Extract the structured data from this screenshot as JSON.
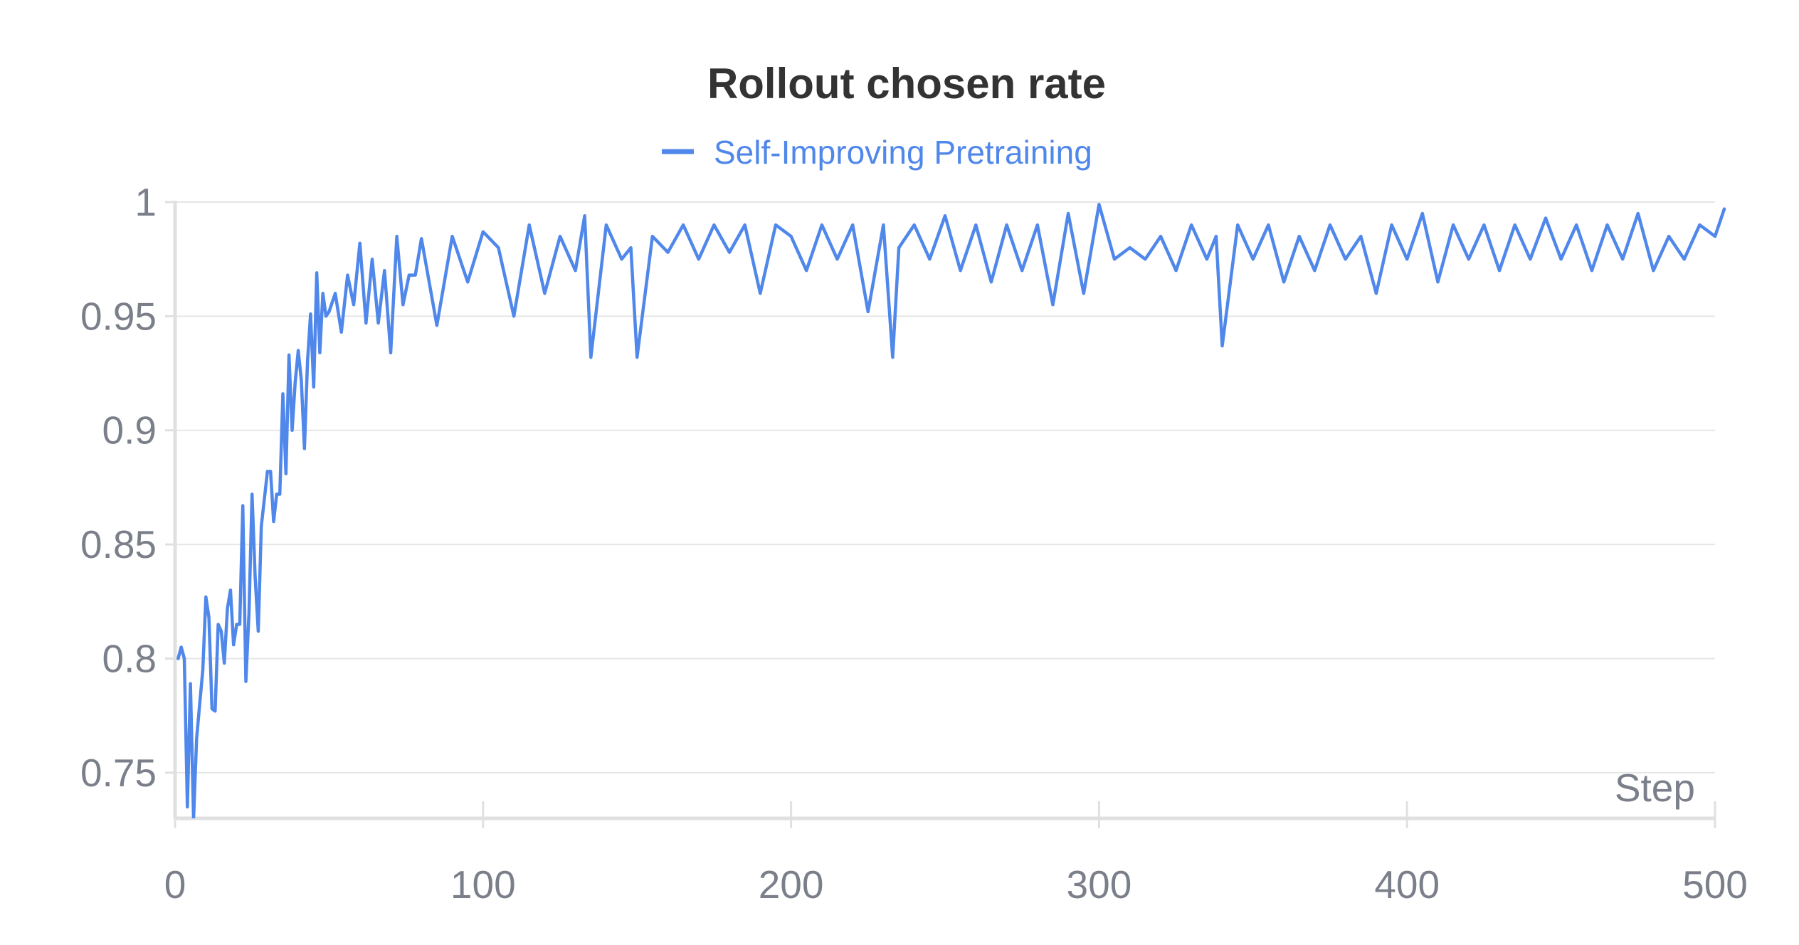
{
  "chart_data": {
    "type": "line",
    "title": "Rollout chosen rate",
    "xlabel": "Step",
    "ylabel": "",
    "xlim": [
      0,
      500
    ],
    "ylim": [
      0.73,
      1.0
    ],
    "x_ticks": [
      "0",
      "100",
      "200",
      "300",
      "400",
      "500"
    ],
    "x_tick_values": [
      0,
      100,
      200,
      300,
      400,
      500
    ],
    "y_ticks": [
      "0.75",
      "0.8",
      "0.85",
      "0.9",
      "0.95",
      "1"
    ],
    "y_tick_values": [
      0.75,
      0.8,
      0.85,
      0.9,
      0.95,
      1.0
    ],
    "grid": true,
    "legend": {
      "position": "top-center"
    },
    "series": [
      {
        "name": "Self-Improving Pretraining",
        "color": "#5087ea",
        "x": [
          1,
          2,
          3,
          4,
          5,
          6,
          7,
          8,
          9,
          10,
          11,
          12,
          13,
          14,
          15,
          16,
          17,
          18,
          19,
          20,
          21,
          22,
          23,
          24,
          25,
          26,
          27,
          28,
          29,
          30,
          31,
          32,
          33,
          34,
          35,
          36,
          37,
          38,
          39,
          40,
          41,
          42,
          43,
          44,
          45,
          46,
          47,
          48,
          49,
          50,
          52,
          54,
          56,
          58,
          60,
          62,
          64,
          66,
          68,
          70,
          72,
          74,
          76,
          78,
          80,
          85,
          90,
          95,
          100,
          105,
          110,
          115,
          120,
          125,
          130,
          133,
          135,
          140,
          145,
          148,
          150,
          155,
          160,
          165,
          170,
          175,
          180,
          185,
          190,
          195,
          200,
          205,
          210,
          215,
          220,
          225,
          230,
          233,
          235,
          240,
          245,
          250,
          255,
          260,
          265,
          270,
          275,
          280,
          285,
          290,
          295,
          300,
          305,
          310,
          315,
          320,
          325,
          330,
          335,
          338,
          340,
          345,
          350,
          355,
          360,
          365,
          370,
          375,
          380,
          385,
          390,
          395,
          400,
          405,
          410,
          415,
          420,
          425,
          430,
          435,
          440,
          445,
          450,
          455,
          460,
          465,
          470,
          475,
          480,
          485,
          490,
          495,
          500,
          503
        ],
        "values": [
          0.8,
          0.805,
          0.8,
          0.735,
          0.789,
          0.73,
          0.765,
          0.78,
          0.795,
          0.827,
          0.818,
          0.778,
          0.777,
          0.815,
          0.812,
          0.798,
          0.822,
          0.83,
          0.806,
          0.815,
          0.815,
          0.867,
          0.79,
          0.82,
          0.872,
          0.836,
          0.812,
          0.858,
          0.87,
          0.882,
          0.882,
          0.86,
          0.872,
          0.872,
          0.916,
          0.881,
          0.933,
          0.9,
          0.921,
          0.935,
          0.922,
          0.892,
          0.93,
          0.951,
          0.919,
          0.969,
          0.934,
          0.96,
          0.95,
          0.952,
          0.96,
          0.943,
          0.968,
          0.955,
          0.982,
          0.947,
          0.975,
          0.947,
          0.97,
          0.934,
          0.985,
          0.955,
          0.968,
          0.968,
          0.984,
          0.946,
          0.985,
          0.965,
          0.987,
          0.98,
          0.95,
          0.99,
          0.96,
          0.985,
          0.97,
          0.994,
          0.932,
          0.99,
          0.975,
          0.98,
          0.932,
          0.985,
          0.978,
          0.99,
          0.975,
          0.99,
          0.978,
          0.99,
          0.96,
          0.99,
          0.985,
          0.97,
          0.99,
          0.975,
          0.99,
          0.952,
          0.99,
          0.932,
          0.98,
          0.99,
          0.975,
          0.994,
          0.97,
          0.99,
          0.965,
          0.99,
          0.97,
          0.99,
          0.955,
          0.995,
          0.96,
          0.999,
          0.975,
          0.98,
          0.975,
          0.985,
          0.97,
          0.99,
          0.975,
          0.985,
          0.937,
          0.99,
          0.975,
          0.99,
          0.965,
          0.985,
          0.97,
          0.99,
          0.975,
          0.985,
          0.96,
          0.99,
          0.975,
          0.995,
          0.965,
          0.99,
          0.975,
          0.99,
          0.97,
          0.99,
          0.975,
          0.993,
          0.975,
          0.99,
          0.97,
          0.99,
          0.975,
          0.995,
          0.97,
          0.985,
          0.975,
          0.99,
          0.985,
          0.997
        ]
      }
    ]
  }
}
